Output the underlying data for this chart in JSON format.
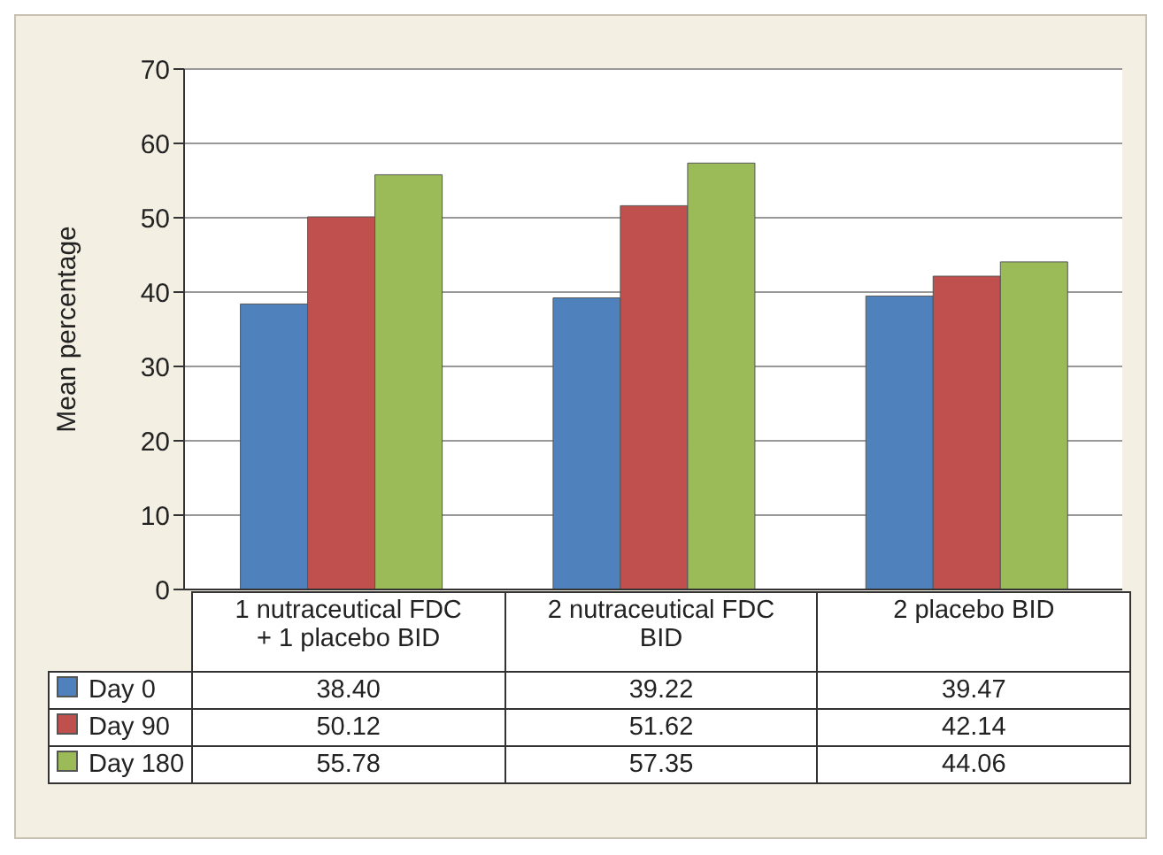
{
  "chart_data": {
    "type": "bar",
    "ylabel": "Mean percentage",
    "categories": [
      "1 nutraceutical FDC + 1 placebo BID",
      "2 nutraceutical FDC BID",
      "2 placebo BID"
    ],
    "series": [
      {
        "name": "Day 0",
        "color": "#4f81bd",
        "values": [
          38.4,
          39.22,
          39.47
        ],
        "value_labels": [
          "38.40",
          "39.22",
          "39.47"
        ]
      },
      {
        "name": "Day 90",
        "color": "#c0504d",
        "values": [
          50.12,
          51.62,
          42.14
        ],
        "value_labels": [
          "50.12",
          "51.62",
          "42.14"
        ]
      },
      {
        "name": "Day 180",
        "color": "#9bbb59",
        "values": [
          55.78,
          57.35,
          44.06
        ],
        "value_labels": [
          "55.78",
          "57.35",
          "44.06"
        ]
      }
    ],
    "ylim": [
      0,
      70
    ],
    "yticks": [
      0,
      10,
      20,
      30,
      40,
      50,
      60,
      70
    ],
    "grid": "y",
    "legend": "bottom"
  }
}
